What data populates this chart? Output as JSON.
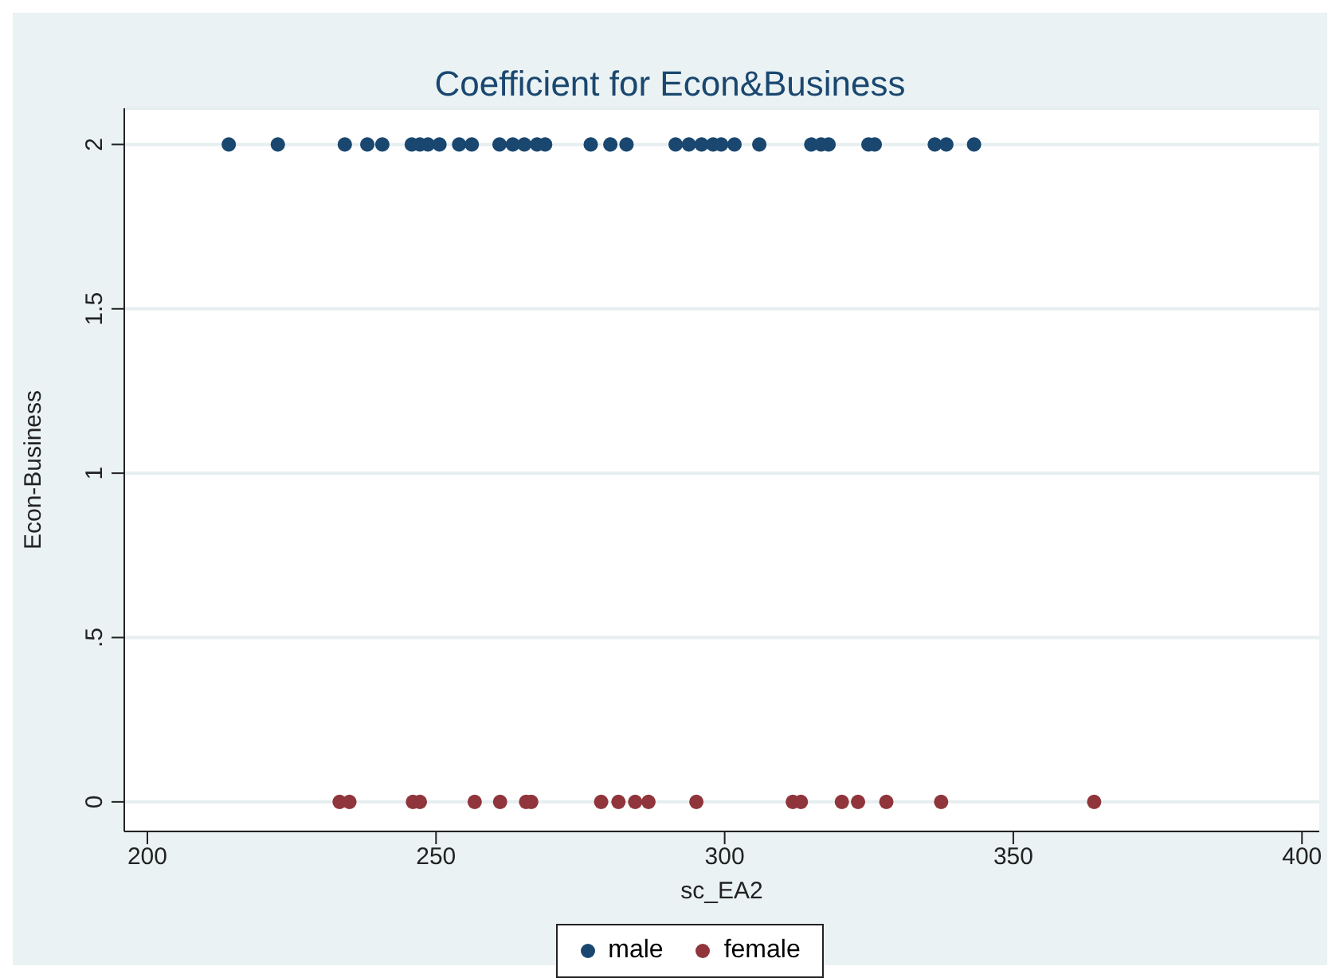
{
  "chart_data": {
    "type": "scatter",
    "title": "Coefficient for Econ&Business",
    "xlabel": "sc_EA2",
    "ylabel": "Econ-Business",
    "xlim": [
      196,
      403
    ],
    "xticks": [
      200,
      250,
      300,
      350,
      400
    ],
    "ylim": [
      -0.09,
      2.11
    ],
    "yticks": [
      0,
      {
        "value": 0.5,
        "label": ".5"
      },
      1,
      1.5,
      2
    ],
    "grid": "y",
    "legend": "bottom",
    "marker": "circle",
    "series": [
      {
        "name": "male",
        "color": "#1a476f",
        "x": [
          214.1,
          222.6,
          234.2,
          238.1,
          240.7,
          245.8,
          247.2,
          248.6,
          250.6,
          254,
          256.2,
          261,
          263.3,
          265.3,
          267.5,
          268.9,
          276.8,
          280.2,
          283,
          291.5,
          293.8,
          296,
          298,
          299.4,
          301.7,
          306,
          315,
          316.7,
          318,
          324.9,
          326,
          336.4,
          338.4,
          343.2
        ],
        "values": [
          2,
          2,
          2,
          2,
          2,
          2,
          2,
          2,
          2,
          2,
          2,
          2,
          2,
          2,
          2,
          2,
          2,
          2,
          2,
          2,
          2,
          2,
          2,
          2,
          2,
          2,
          2,
          2,
          2,
          2,
          2,
          2,
          2,
          2
        ]
      },
      {
        "name": "female",
        "color": "#90353b",
        "x": [
          233.3,
          235,
          246,
          247.2,
          256.7,
          261.1,
          265.6,
          266.5,
          278.6,
          281.6,
          284.5,
          286.8,
          295.1,
          311.8,
          313.2,
          320.3,
          323.1,
          328,
          337.5,
          364
        ],
        "values": [
          0,
          0,
          0,
          0,
          0,
          0,
          0,
          0,
          0,
          0,
          0,
          0,
          0,
          0,
          0,
          0,
          0,
          0,
          0,
          0
        ]
      }
    ]
  }
}
